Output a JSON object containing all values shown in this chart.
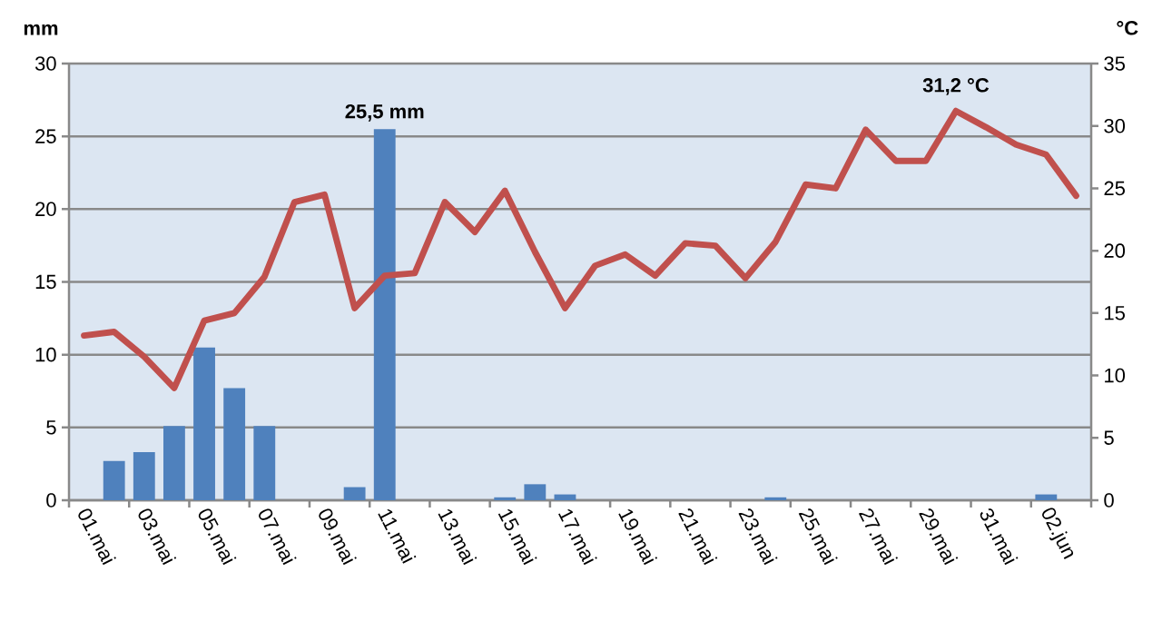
{
  "chart_data": {
    "type": "bar",
    "ylabel": "mm",
    "y2label": "°C",
    "categories": [
      "01.mai",
      null,
      "03.mai",
      null,
      "05.mai",
      null,
      "07.mai",
      null,
      "09.mai",
      null,
      "11.mai",
      null,
      "13.mai",
      null,
      "15.mai",
      null,
      "17.mai",
      null,
      "19.mai",
      null,
      "21.mai",
      null,
      "23.mai",
      null,
      "25.mai",
      null,
      "27.mai",
      null,
      "29.mai",
      null,
      "31.mai",
      null,
      "02.jun",
      null
    ],
    "ylim": [
      0,
      30
    ],
    "yticks": [
      0,
      5,
      10,
      15,
      20,
      25,
      30
    ],
    "y2lim": [
      0,
      35
    ],
    "y2ticks": [
      0,
      5,
      10,
      15,
      20,
      25,
      30,
      35
    ],
    "grid": "y",
    "series": [
      {
        "color": "#4f81bd",
        "values": [
          0,
          2.7,
          3.3,
          5.1,
          10.5,
          7.7,
          5.1,
          0,
          0,
          0.9,
          25.5,
          0,
          0,
          0,
          0.2,
          1.1,
          0.4,
          0,
          0,
          0,
          0,
          0,
          0,
          0.2,
          0,
          0,
          0,
          0,
          0,
          0,
          0,
          0,
          0.4,
          0
        ],
        "value_labels": [
          null,
          null,
          null,
          null,
          null,
          null,
          null,
          null,
          null,
          null,
          "25,5 mm",
          null,
          null,
          null,
          null,
          null,
          null,
          null,
          null,
          null,
          null,
          null,
          null,
          null,
          null,
          null,
          null,
          null,
          null,
          null,
          null,
          null,
          null,
          null
        ]
      },
      {
        "type": "line",
        "axis": "y2",
        "color": "#c0504d",
        "values": [
          13.2,
          13.5,
          11.5,
          9.0,
          14.4,
          15.0,
          17.9,
          23.9,
          24.5,
          15.4,
          18.0,
          18.2,
          23.9,
          21.5,
          24.8,
          19.9,
          15.4,
          18.8,
          19.7,
          18.0,
          20.6,
          20.4,
          17.8,
          20.7,
          25.3,
          25.0,
          29.7,
          27.2,
          27.2,
          31.2,
          29.9,
          28.5,
          27.7,
          24.4
        ],
        "value_labels": [
          null,
          null,
          null,
          null,
          null,
          null,
          null,
          null,
          null,
          null,
          null,
          null,
          null,
          null,
          null,
          null,
          null,
          null,
          null,
          null,
          null,
          null,
          null,
          null,
          null,
          null,
          null,
          null,
          null,
          "31,2 °C",
          null,
          null,
          null,
          null
        ]
      }
    ]
  }
}
